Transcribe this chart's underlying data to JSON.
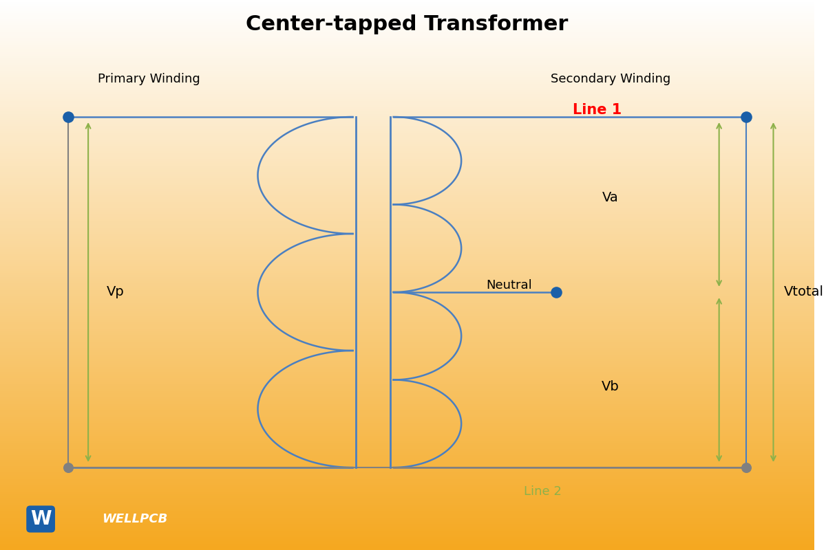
{
  "title": "Center-tapped Transformer",
  "title_fontsize": 22,
  "title_fontweight": "bold",
  "bg_color_top": "#f5f5f5",
  "bg_color_bottom": "#f5a623",
  "primary_label": "Primary Winding",
  "secondary_label": "Secondary Winding",
  "line1_label": "Line 1",
  "line2_label": "Line 2",
  "neutral_label": "Neutral",
  "vp_label": "Vp",
  "va_label": "Va",
  "vb_label": "Vb",
  "vtotal_label": "Vtotal",
  "winding_color": "#4a7fc1",
  "core_color": "#4a7fc1",
  "wire_color": "#4a7fc1",
  "bottom_wire_color": "#808080",
  "arrow_color": "#8db14a",
  "dot_color_top": "#1a5fa8",
  "dot_color_neutral": "#1a5fa8",
  "dot_color_bottom": "#808080",
  "line1_color": "red",
  "line2_color": "#8db14a",
  "logo_text": "WELLPCB"
}
